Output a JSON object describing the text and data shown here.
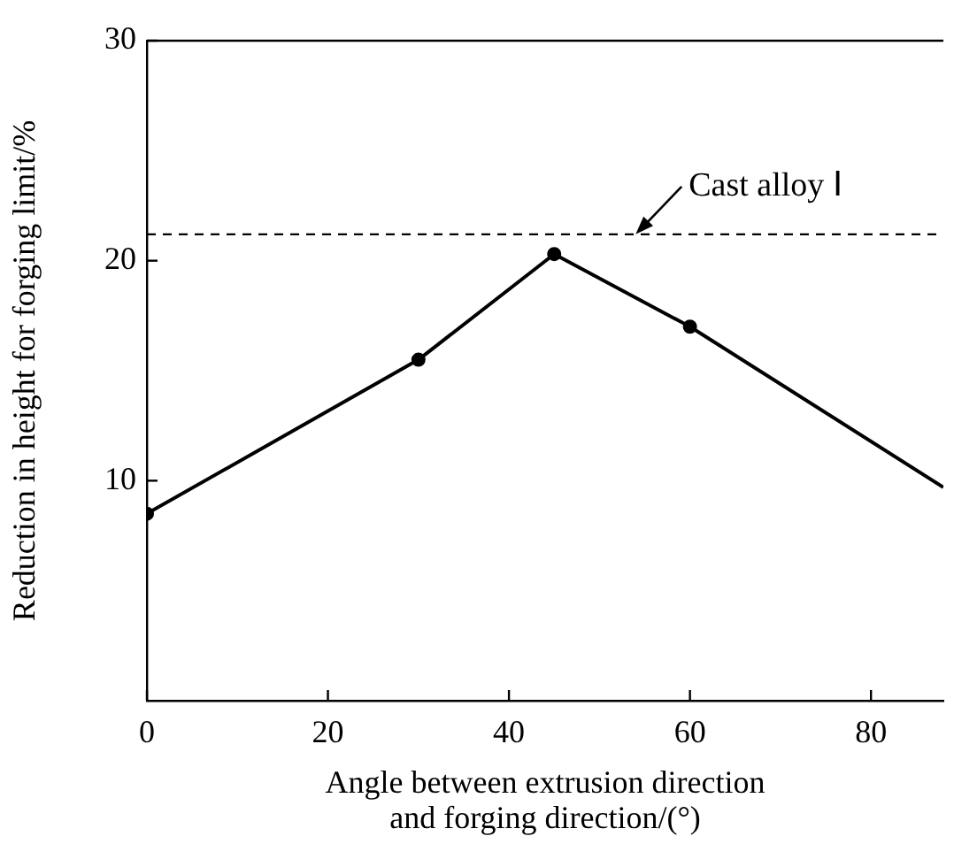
{
  "chart_data": {
    "type": "line",
    "xlabel": "Angle between extrusion direction\nand forging direction/(°)",
    "ylabel": "Reduction in height for forging limit/%",
    "x": [
      0,
      30,
      45,
      60,
      88
    ],
    "series": [
      {
        "color": "#000000",
        "values": [
          8.5,
          15.5,
          20.3,
          17.0,
          9.7
        ]
      }
    ],
    "xlim": [
      0,
      88
    ],
    "xticks": [
      0,
      20,
      40,
      60,
      80
    ],
    "ylim": [
      0,
      30
    ],
    "yticks": [
      10,
      20,
      30
    ],
    "ref_lines": [
      {
        "axis": "y",
        "value": 21.2,
        "color": "#000000",
        "line_style": "dashed"
      }
    ],
    "annotations": [
      {
        "text": "Cast alloy Ⅰ",
        "x": 54,
        "y": 21.2
      }
    ],
    "grid": false,
    "legend": false,
    "marker": "circle",
    "line_style": "solid"
  }
}
